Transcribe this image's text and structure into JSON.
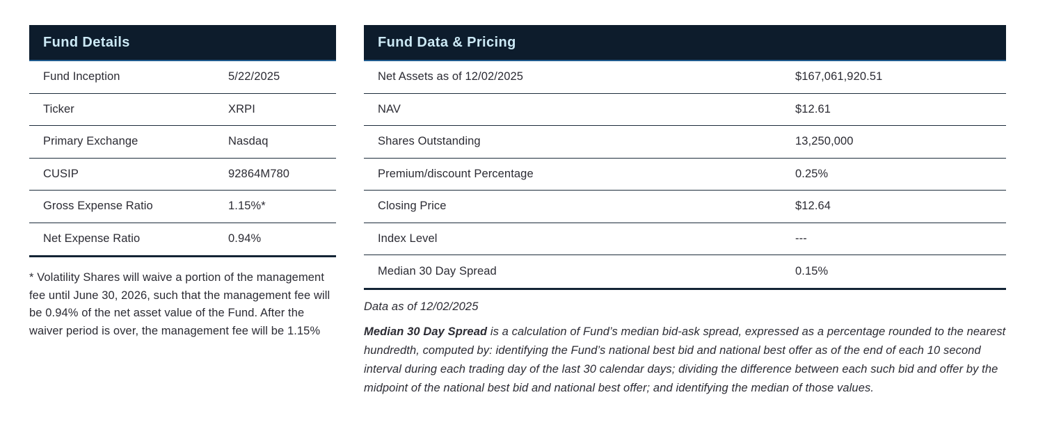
{
  "colors": {
    "header_bg": "#0d1c2c",
    "header_accent": "#1f5b8e",
    "header_text": "#cce9f5",
    "text": "#2b2b33",
    "border": "#1c2b3a",
    "border_strong": "#132435"
  },
  "left_table": {
    "title": "Fund Details",
    "rows": [
      {
        "label": "Fund Inception",
        "value": "5/22/2025"
      },
      {
        "label": "Ticker",
        "value": "XRPI"
      },
      {
        "label": "Primary Exchange",
        "value": "Nasdaq"
      },
      {
        "label": "CUSIP",
        "value": "92864M780"
      },
      {
        "label": "Gross Expense Ratio",
        "value": "1.15%*"
      },
      {
        "label": "Net Expense Ratio",
        "value": "0.94%"
      }
    ],
    "footnote": "* Volatility Shares will waive a portion of the management fee until June 30, 2026, such that the management fee will be 0.94% of the net asset value of the Fund. After the waiver period is over, the management fee will be 1.15%"
  },
  "right_table": {
    "title": "Fund Data & Pricing",
    "rows": [
      {
        "label": "Net Assets as of 12/02/2025",
        "value": "$167,061,920.51"
      },
      {
        "label": "NAV",
        "value": "$12.61"
      },
      {
        "label": "Shares Outstanding",
        "value": "13,250,000"
      },
      {
        "label": "Premium/discount Percentage",
        "value": "0.25%"
      },
      {
        "label": "Closing Price",
        "value": "$12.64"
      },
      {
        "label": "Index Level",
        "value": "---"
      },
      {
        "label": "Median 30 Day Spread",
        "value": "0.15%"
      }
    ],
    "data_as_of": "Data as of 12/02/2025",
    "definition_term": "Median 30 Day Spread",
    "definition_body": " is a calculation of Fund’s median bid-ask spread, expressed as a percentage rounded to the nearest hundredth, computed by: identifying the Fund’s national best bid and national best offer as of the end of each 10 second interval during each trading day of the last 30 calendar days; dividing the difference between each such bid and offer by the midpoint of the national best bid and national best offer; and identifying the median of those values."
  }
}
